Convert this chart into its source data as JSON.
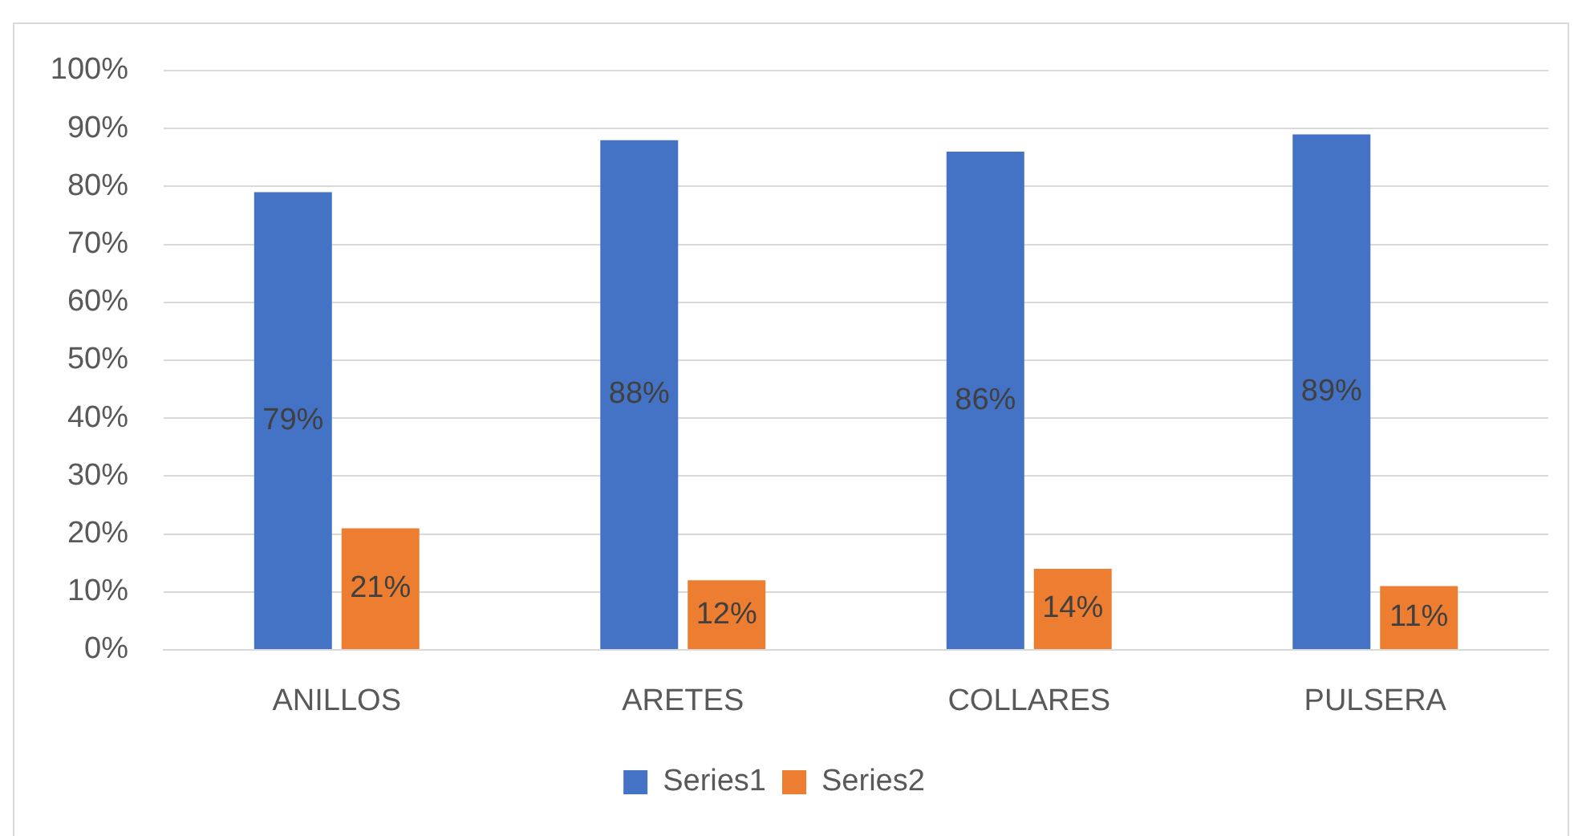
{
  "chart_data": {
    "type": "bar",
    "categories": [
      "ANILLOS",
      "ARETES",
      "COLLARES",
      "PULSERA"
    ],
    "series": [
      {
        "name": "Series1",
        "color": "#4472c4",
        "values": [
          79,
          88,
          86,
          89
        ],
        "value_labels": [
          "79%",
          "88%",
          "86%",
          "89%"
        ]
      },
      {
        "name": "Series2",
        "color": "#ed7d31",
        "values": [
          21,
          12,
          14,
          11
        ],
        "value_labels": [
          "21%",
          "12%",
          "14%",
          "11%"
        ]
      }
    ],
    "ylim": [
      0,
      100
    ],
    "yticks": [
      {
        "value": 0,
        "label": "0%"
      },
      {
        "value": 10,
        "label": "10%"
      },
      {
        "value": 20,
        "label": "20%"
      },
      {
        "value": 30,
        "label": "30%"
      },
      {
        "value": 40,
        "label": "40%"
      },
      {
        "value": 50,
        "label": "50%"
      },
      {
        "value": 60,
        "label": "60%"
      },
      {
        "value": 70,
        "label": "70%"
      },
      {
        "value": 80,
        "label": "80%"
      },
      {
        "value": 90,
        "label": "90%"
      },
      {
        "value": 100,
        "label": "100%"
      }
    ],
    "grid": "y",
    "legend": "bottom"
  }
}
